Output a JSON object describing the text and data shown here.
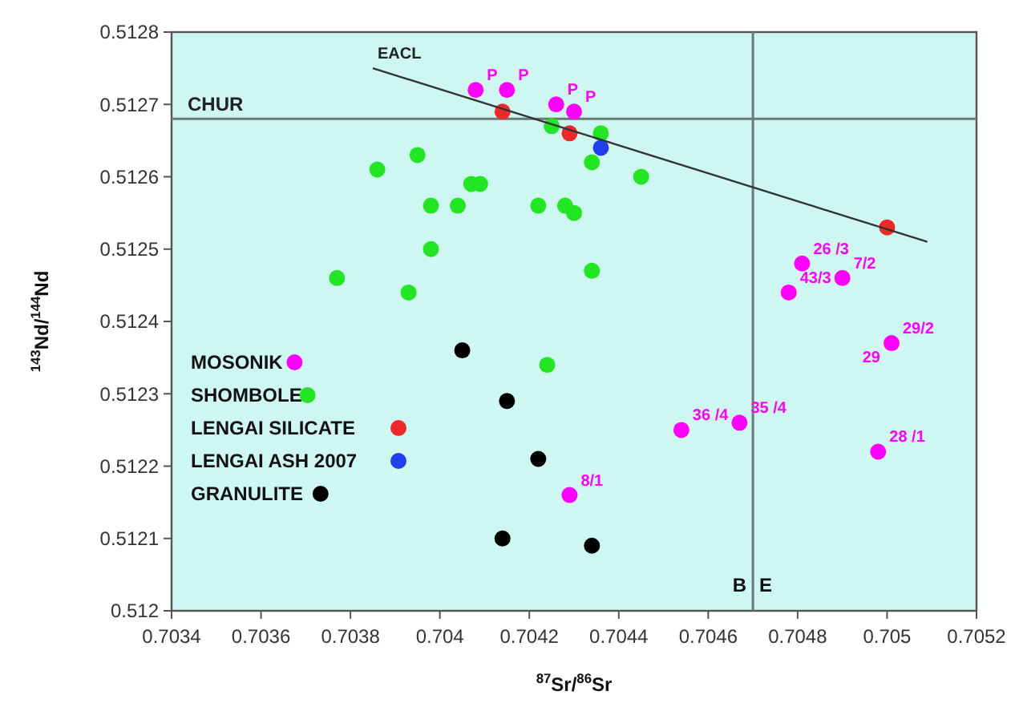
{
  "chart_data": {
    "type": "scatter",
    "xlabel": "$^{87}$Sr/$^{86}$Sr",
    "ylabel": "$^{143}$Nd/$^{144}$Nd",
    "xlim": [
      0.7034,
      0.7052
    ],
    "xticks": [
      0.7034,
      0.7036,
      0.7038,
      0.704,
      0.7042,
      0.7044,
      0.7046,
      0.7048,
      0.705,
      0.7052
    ],
    "ylim": [
      0.512,
      0.5128
    ],
    "yticks": [
      0.512,
      0.5121,
      0.5122,
      0.5123,
      0.5124,
      0.5125,
      0.5126,
      0.5127,
      0.5128
    ],
    "legend": "bottom left",
    "marker": "circle",
    "series": [
      {
        "name": "MOSONIK",
        "color": "#ff00ff",
        "x": [
          0.70408,
          0.70415,
          0.70426,
          0.7043,
          0.70481,
          0.7049,
          0.70478,
          0.70501,
          0.70454,
          0.70467,
          0.70498,
          0.70429
        ],
        "values": [
          0.51272,
          0.51272,
          0.5127,
          0.51269,
          0.51248,
          0.51246,
          0.51244,
          0.51237,
          0.51225,
          0.51226,
          0.51222,
          0.51216
        ]
      },
      {
        "name": "SHOMBOLE",
        "color": "#22e622",
        "x": [
          0.70425,
          0.70436,
          0.70434,
          0.70386,
          0.70395,
          0.70407,
          0.70409,
          0.70398,
          0.70404,
          0.70422,
          0.70428,
          0.7043,
          0.70398,
          0.70377,
          0.70393,
          0.70434,
          0.70445,
          0.70424
        ],
        "values": [
          0.51267,
          0.51266,
          0.51262,
          0.51261,
          0.51263,
          0.51259,
          0.51259,
          0.51256,
          0.51256,
          0.51256,
          0.51256,
          0.51255,
          0.5125,
          0.51246,
          0.51244,
          0.51247,
          0.5126,
          0.51234
        ]
      },
      {
        "name": "LENGAI SILICATE",
        "color": "#f02828",
        "x": [
          0.70414,
          0.70429,
          0.705
        ],
        "values": [
          0.51269,
          0.51266,
          0.51253
        ]
      },
      {
        "name": "LENGAI ASH 2007",
        "color": "#2040f0",
        "x": [
          0.70436
        ],
        "values": [
          0.51264
        ]
      },
      {
        "name": "GRANULITE",
        "color": "#000000",
        "x": [
          0.70405,
          0.70415,
          0.70422,
          0.70414,
          0.70434
        ],
        "values": [
          0.51236,
          0.51229,
          0.51221,
          0.5121,
          0.51209
        ]
      },
      {
        "name": "EACL",
        "type": "line",
        "marker": "none",
        "color": "#333333",
        "x": [
          0.70385,
          0.70509
        ],
        "values": [
          0.51275,
          0.51251
        ]
      }
    ],
    "ref_lines": [
      {
        "axis": "y",
        "value": 0.51268,
        "label": "CHUR",
        "color": "#6a7a78"
      },
      {
        "axis": "x",
        "value": 0.7047,
        "color": "#6a7a78"
      }
    ],
    "annotations": [
      {
        "text": "P",
        "x": 0.70408,
        "y": 0.51272
      },
      {
        "text": "P",
        "x": 0.70415,
        "y": 0.51272
      },
      {
        "text": "P",
        "x": 0.70426,
        "y": 0.5127
      },
      {
        "text": "P",
        "x": 0.7043,
        "y": 0.51269
      },
      {
        "text": "26 /3",
        "x": 0.70481,
        "y": 0.51248
      },
      {
        "text": "7/2",
        "x": 0.7049,
        "y": 0.51246
      },
      {
        "text": "43/3",
        "x": 0.70478,
        "y": 0.51244
      },
      {
        "text": "29/2",
        "x": 0.70501,
        "y": 0.51237
      },
      {
        "text": "29",
        "x": 0.70501,
        "y": 0.51237
      },
      {
        "text": "36 /4",
        "x": 0.70454,
        "y": 0.51225
      },
      {
        "text": "35 /4",
        "x": 0.70467,
        "y": 0.51226
      },
      {
        "text": "28 /1",
        "x": 0.70498,
        "y": 0.51222
      },
      {
        "text": "8/1",
        "x": 0.70429,
        "y": 0.51216
      },
      "B",
      "E"
    ]
  }
}
